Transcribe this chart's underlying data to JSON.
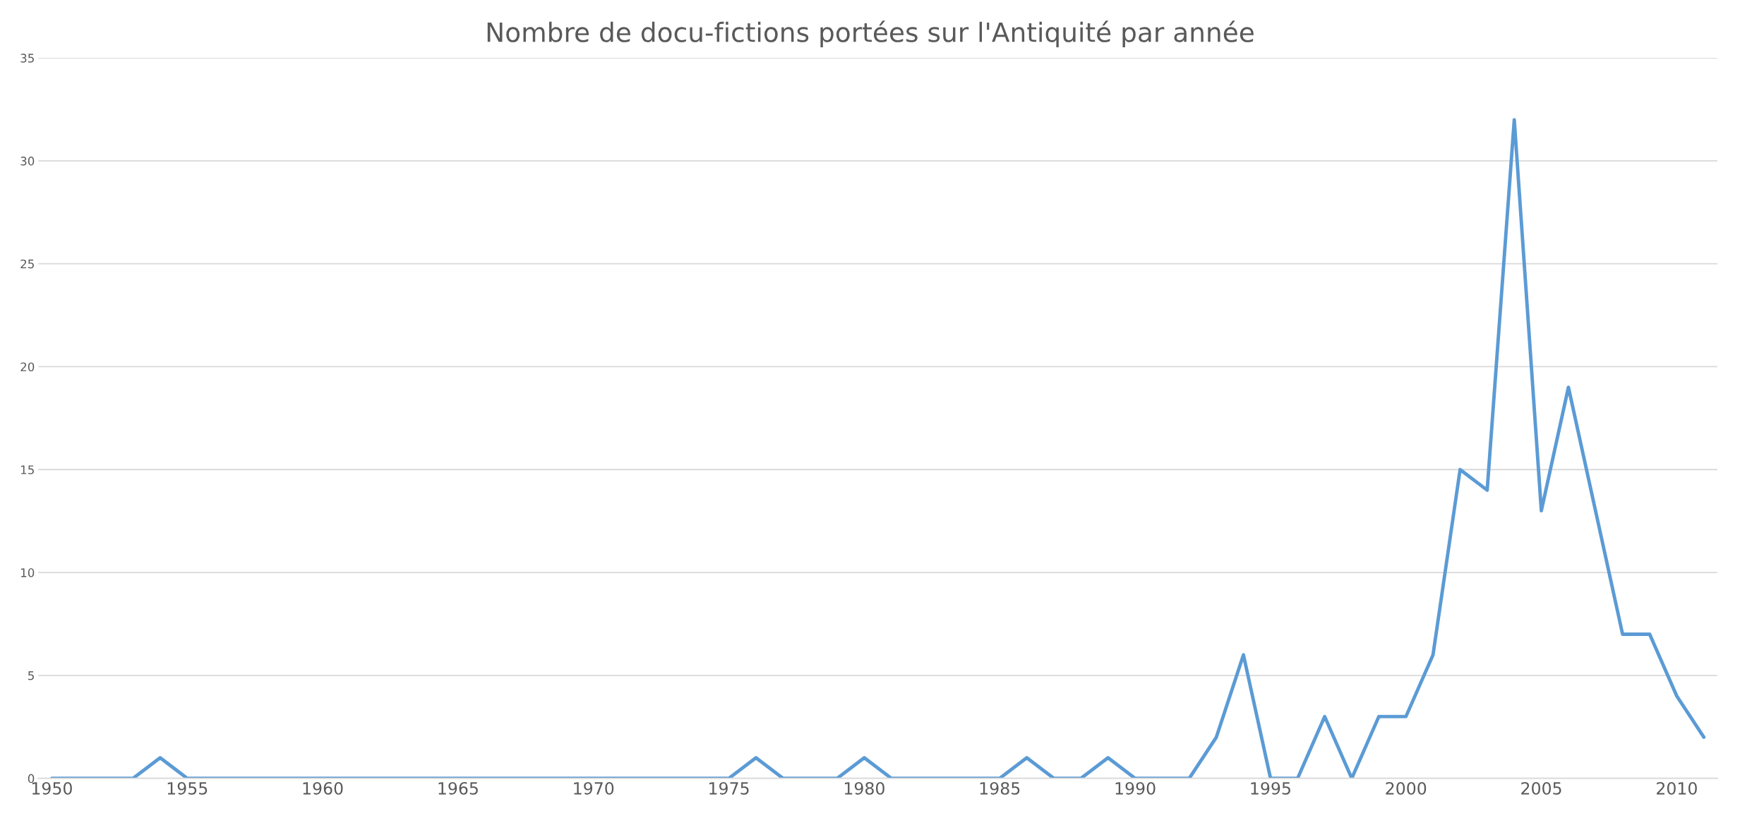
{
  "chart_data": {
    "type": "line",
    "title": "Nombre de docu-fictions portées sur l'Antiquité par année",
    "x": [
      1950,
      1951,
      1952,
      1953,
      1954,
      1955,
      1956,
      1957,
      1958,
      1959,
      1960,
      1961,
      1962,
      1963,
      1964,
      1965,
      1966,
      1967,
      1968,
      1969,
      1970,
      1971,
      1972,
      1973,
      1974,
      1975,
      1976,
      1977,
      1978,
      1979,
      1980,
      1981,
      1982,
      1983,
      1984,
      1985,
      1986,
      1987,
      1988,
      1989,
      1990,
      1991,
      1992,
      1993,
      1994,
      1995,
      1996,
      1997,
      1998,
      1999,
      2000,
      2001,
      2002,
      2003,
      2004,
      2005,
      2006,
      2007,
      2008,
      2009,
      2010,
      2011
    ],
    "series": [
      {
        "color": "#5b9bd5",
        "values": [
          0,
          0,
          0,
          0,
          1,
          0,
          0,
          0,
          0,
          0,
          0,
          0,
          0,
          0,
          0,
          0,
          0,
          0,
          0,
          0,
          0,
          0,
          0,
          0,
          0,
          0,
          1,
          0,
          0,
          0,
          1,
          0,
          0,
          0,
          0,
          0,
          1,
          0,
          0,
          1,
          0,
          0,
          0,
          2,
          6,
          0,
          0,
          3,
          0,
          3,
          3,
          6,
          15,
          14,
          32,
          13,
          19,
          13,
          7,
          7,
          4,
          2
        ]
      }
    ],
    "xlim": [
      1949.5,
      2011.5
    ],
    "xticks": [
      1950,
      1955,
      1960,
      1965,
      1970,
      1975,
      1980,
      1985,
      1990,
      1995,
      2000,
      2005,
      2010
    ],
    "ylim": [
      0,
      35
    ],
    "yticks": [
      0,
      5,
      10,
      15,
      20,
      25,
      30,
      35
    ],
    "grid": "y",
    "marker": "none",
    "line_style": "solid"
  }
}
